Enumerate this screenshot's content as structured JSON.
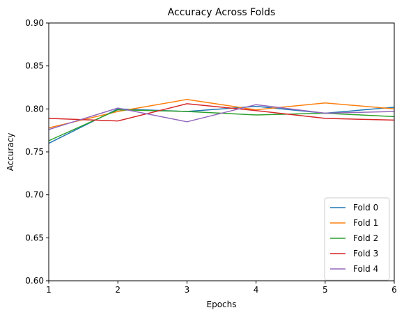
{
  "chart_data": {
    "type": "line",
    "title": "Accuracy Across Folds",
    "xlabel": "Epochs",
    "ylabel": "Accuracy",
    "xlim": [
      1,
      6
    ],
    "ylim": [
      0.6,
      0.9
    ],
    "x": [
      1,
      2,
      3,
      4,
      5,
      6
    ],
    "x_ticks": [
      "1",
      "2",
      "3",
      "4",
      "5",
      "6"
    ],
    "y_ticks": [
      "0.60",
      "0.65",
      "0.70",
      "0.75",
      "0.80",
      "0.85",
      "0.90"
    ],
    "y_tick_values": [
      0.6,
      0.65,
      0.7,
      0.75,
      0.8,
      0.85,
      0.9
    ],
    "grid": false,
    "legend_position": "lower-right",
    "series": [
      {
        "name": "Fold 0",
        "color": "#1f77b4",
        "values": [
          0.76,
          0.8,
          0.797,
          0.803,
          0.795,
          0.802
        ]
      },
      {
        "name": "Fold 1",
        "color": "#ff7f0e",
        "values": [
          0.778,
          0.797,
          0.811,
          0.799,
          0.807,
          0.8
        ]
      },
      {
        "name": "Fold 2",
        "color": "#2ca02c",
        "values": [
          0.763,
          0.799,
          0.797,
          0.793,
          0.795,
          0.791
        ]
      },
      {
        "name": "Fold 3",
        "color": "#d62728",
        "values": [
          0.789,
          0.786,
          0.806,
          0.798,
          0.789,
          0.787
        ]
      },
      {
        "name": "Fold 4",
        "color": "#9467bd",
        "values": [
          0.776,
          0.801,
          0.785,
          0.805,
          0.795,
          0.797
        ]
      }
    ]
  }
}
